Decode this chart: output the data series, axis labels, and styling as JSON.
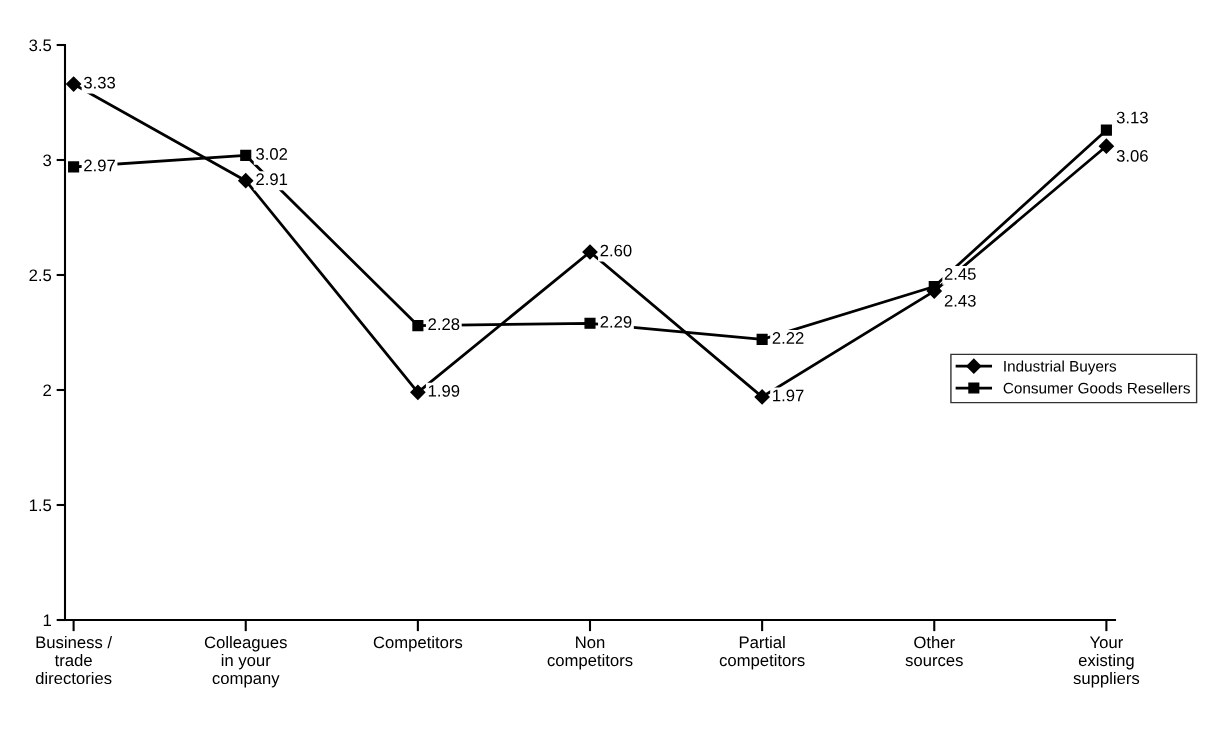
{
  "chart_data": {
    "type": "line",
    "categories": [
      "Business /\ntrade\ndirectories",
      "Colleagues\nin your\ncompany",
      "Competitors",
      "Non\ncompetitors",
      "Partial\ncompetitors",
      "Other\nsources",
      "Your\nexisting\nsuppliers"
    ],
    "series": [
      {
        "name": "Industrial Buyers",
        "color": "#000000",
        "marker": "diamond",
        "values": [
          3.33,
          2.91,
          1.99,
          2.6,
          1.97,
          2.43,
          3.06
        ],
        "value_labels": [
          "3.33",
          "2.91",
          "1.99",
          "2.60",
          "1.97",
          "2.43",
          "3.06"
        ]
      },
      {
        "name": "Consumer Goods Resellers",
        "color": "#000000",
        "marker": "square",
        "values": [
          2.97,
          3.02,
          2.28,
          2.29,
          2.22,
          2.45,
          3.13
        ],
        "value_labels": [
          "2.97",
          "3.02",
          "2.28",
          "2.29",
          "2.22",
          "2.45",
          "3.13"
        ]
      }
    ],
    "ylim": [
      1,
      3.5
    ],
    "yticks": [
      1,
      1.5,
      2,
      2.5,
      3,
      3.5
    ],
    "grid": false,
    "legend": "right",
    "line_style": "solid"
  }
}
